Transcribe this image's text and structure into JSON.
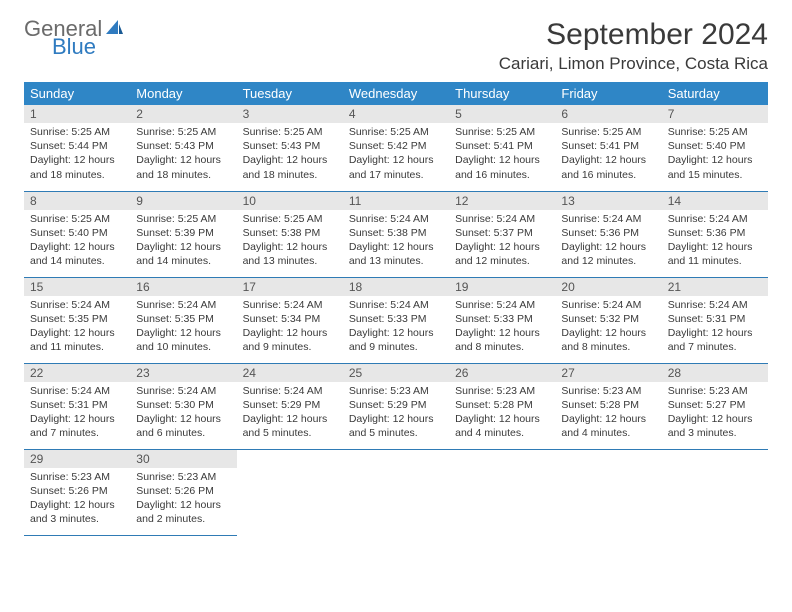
{
  "brand": {
    "general": "General",
    "blue": "Blue"
  },
  "title": "September 2024",
  "location": "Cariari, Limon Province, Costa Rica",
  "colors": {
    "header_bg": "#2f86c6",
    "header_text": "#ffffff",
    "daynum_bg": "#e7e7e7",
    "cell_border": "#2f7bb5",
    "logo_gray": "#6b6b6b",
    "logo_blue": "#2f7bc0",
    "text": "#3a3a3a",
    "background": "#ffffff"
  },
  "weekdays": [
    "Sunday",
    "Monday",
    "Tuesday",
    "Wednesday",
    "Thursday",
    "Friday",
    "Saturday"
  ],
  "days": [
    {
      "n": 1,
      "sunrise": "5:25 AM",
      "sunset": "5:44 PM",
      "daylight": "12 hours and 18 minutes."
    },
    {
      "n": 2,
      "sunrise": "5:25 AM",
      "sunset": "5:43 PM",
      "daylight": "12 hours and 18 minutes."
    },
    {
      "n": 3,
      "sunrise": "5:25 AM",
      "sunset": "5:43 PM",
      "daylight": "12 hours and 18 minutes."
    },
    {
      "n": 4,
      "sunrise": "5:25 AM",
      "sunset": "5:42 PM",
      "daylight": "12 hours and 17 minutes."
    },
    {
      "n": 5,
      "sunrise": "5:25 AM",
      "sunset": "5:41 PM",
      "daylight": "12 hours and 16 minutes."
    },
    {
      "n": 6,
      "sunrise": "5:25 AM",
      "sunset": "5:41 PM",
      "daylight": "12 hours and 16 minutes."
    },
    {
      "n": 7,
      "sunrise": "5:25 AM",
      "sunset": "5:40 PM",
      "daylight": "12 hours and 15 minutes."
    },
    {
      "n": 8,
      "sunrise": "5:25 AM",
      "sunset": "5:40 PM",
      "daylight": "12 hours and 14 minutes."
    },
    {
      "n": 9,
      "sunrise": "5:25 AM",
      "sunset": "5:39 PM",
      "daylight": "12 hours and 14 minutes."
    },
    {
      "n": 10,
      "sunrise": "5:25 AM",
      "sunset": "5:38 PM",
      "daylight": "12 hours and 13 minutes."
    },
    {
      "n": 11,
      "sunrise": "5:24 AM",
      "sunset": "5:38 PM",
      "daylight": "12 hours and 13 minutes."
    },
    {
      "n": 12,
      "sunrise": "5:24 AM",
      "sunset": "5:37 PM",
      "daylight": "12 hours and 12 minutes."
    },
    {
      "n": 13,
      "sunrise": "5:24 AM",
      "sunset": "5:36 PM",
      "daylight": "12 hours and 12 minutes."
    },
    {
      "n": 14,
      "sunrise": "5:24 AM",
      "sunset": "5:36 PM",
      "daylight": "12 hours and 11 minutes."
    },
    {
      "n": 15,
      "sunrise": "5:24 AM",
      "sunset": "5:35 PM",
      "daylight": "12 hours and 11 minutes."
    },
    {
      "n": 16,
      "sunrise": "5:24 AM",
      "sunset": "5:35 PM",
      "daylight": "12 hours and 10 minutes."
    },
    {
      "n": 17,
      "sunrise": "5:24 AM",
      "sunset": "5:34 PM",
      "daylight": "12 hours and 9 minutes."
    },
    {
      "n": 18,
      "sunrise": "5:24 AM",
      "sunset": "5:33 PM",
      "daylight": "12 hours and 9 minutes."
    },
    {
      "n": 19,
      "sunrise": "5:24 AM",
      "sunset": "5:33 PM",
      "daylight": "12 hours and 8 minutes."
    },
    {
      "n": 20,
      "sunrise": "5:24 AM",
      "sunset": "5:32 PM",
      "daylight": "12 hours and 8 minutes."
    },
    {
      "n": 21,
      "sunrise": "5:24 AM",
      "sunset": "5:31 PM",
      "daylight": "12 hours and 7 minutes."
    },
    {
      "n": 22,
      "sunrise": "5:24 AM",
      "sunset": "5:31 PM",
      "daylight": "12 hours and 7 minutes."
    },
    {
      "n": 23,
      "sunrise": "5:24 AM",
      "sunset": "5:30 PM",
      "daylight": "12 hours and 6 minutes."
    },
    {
      "n": 24,
      "sunrise": "5:24 AM",
      "sunset": "5:29 PM",
      "daylight": "12 hours and 5 minutes."
    },
    {
      "n": 25,
      "sunrise": "5:23 AM",
      "sunset": "5:29 PM",
      "daylight": "12 hours and 5 minutes."
    },
    {
      "n": 26,
      "sunrise": "5:23 AM",
      "sunset": "5:28 PM",
      "daylight": "12 hours and 4 minutes."
    },
    {
      "n": 27,
      "sunrise": "5:23 AM",
      "sunset": "5:28 PM",
      "daylight": "12 hours and 4 minutes."
    },
    {
      "n": 28,
      "sunrise": "5:23 AM",
      "sunset": "5:27 PM",
      "daylight": "12 hours and 3 minutes."
    },
    {
      "n": 29,
      "sunrise": "5:23 AM",
      "sunset": "5:26 PM",
      "daylight": "12 hours and 3 minutes."
    },
    {
      "n": 30,
      "sunrise": "5:23 AM",
      "sunset": "5:26 PM",
      "daylight": "12 hours and 2 minutes."
    }
  ],
  "labels": {
    "sunrise": "Sunrise:",
    "sunset": "Sunset:",
    "daylight": "Daylight:"
  },
  "layout": {
    "columns": 7,
    "rows": 5,
    "start_weekday": 0,
    "cell_fontsize": 10.5,
    "header_fontsize": 13,
    "title_fontsize": 30,
    "location_fontsize": 17
  }
}
